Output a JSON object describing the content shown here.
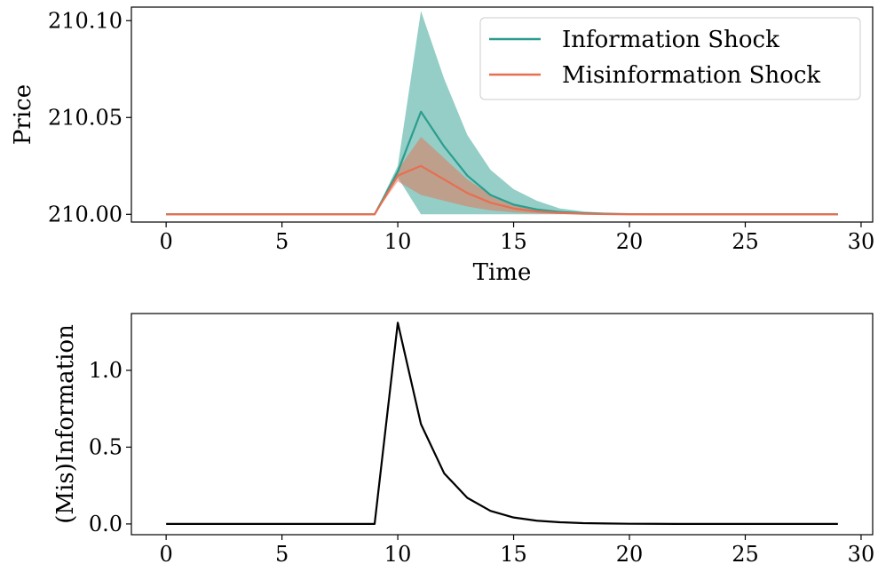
{
  "chart_data": [
    {
      "type": "line",
      "xlabel": "Time",
      "ylabel": "Price",
      "xlim": [
        -1.5,
        30.5
      ],
      "ylim": [
        209.996,
        210.107
      ],
      "xticks": [
        0,
        5,
        10,
        15,
        20,
        25,
        30
      ],
      "yticks": [
        210.0,
        210.05,
        210.1
      ],
      "ytick_labels": [
        "210.00",
        "210.05",
        "210.10"
      ],
      "legend_position": "upper-right",
      "x": [
        0,
        1,
        2,
        3,
        4,
        5,
        6,
        7,
        8,
        9,
        10,
        11,
        12,
        13,
        14,
        15,
        16,
        17,
        18,
        19,
        20,
        21,
        22,
        23,
        24,
        25,
        26,
        27,
        28,
        29
      ],
      "series": [
        {
          "name": "Information Shock",
          "color": "#2a9d8f",
          "band_color": "#2a9d8f",
          "values": [
            210,
            210,
            210,
            210,
            210,
            210,
            210,
            210,
            210,
            210,
            210.022,
            210.053,
            210.035,
            210.02,
            210.01,
            210.005,
            210.0025,
            210.0012,
            210.0006,
            210.0003,
            210.0001,
            210,
            210,
            210,
            210,
            210,
            210,
            210,
            210,
            210
          ],
          "band_upper": [
            210,
            210,
            210,
            210,
            210,
            210,
            210,
            210,
            210,
            210,
            210.025,
            210.105,
            210.07,
            210.041,
            210.023,
            210.013,
            210.007,
            210.003,
            210.0015,
            210.0007,
            210.0003,
            210.0001,
            210,
            210,
            210,
            210,
            210,
            210,
            210,
            210
          ],
          "band_lower": [
            210,
            210,
            210,
            210,
            210,
            210,
            210,
            210,
            210,
            210,
            210.019,
            210,
            210,
            210,
            210,
            210,
            210,
            210,
            210,
            210,
            210,
            210,
            210,
            210,
            210,
            210,
            210,
            210,
            210,
            210
          ]
        },
        {
          "name": "Misinformation Shock",
          "color": "#e76f51",
          "band_color": "#e76f51",
          "values": [
            210,
            210,
            210,
            210,
            210,
            210,
            210,
            210,
            210,
            210,
            210.02,
            210.025,
            210.018,
            210.011,
            210.006,
            210.003,
            210.0015,
            210.0007,
            210.0003,
            210.0001,
            210,
            210,
            210,
            210,
            210,
            210,
            210,
            210,
            210,
            210
          ],
          "band_upper": [
            210,
            210,
            210,
            210,
            210,
            210,
            210,
            210,
            210,
            210,
            210.023,
            210.04,
            210.029,
            210.018,
            210.01,
            210.005,
            210.0025,
            210.0012,
            210.0006,
            210.0002,
            210,
            210,
            210,
            210,
            210,
            210,
            210,
            210,
            210,
            210
          ],
          "band_lower": [
            210,
            210,
            210,
            210,
            210,
            210,
            210,
            210,
            210,
            210,
            210.017,
            210.01,
            210.007,
            210.004,
            210.002,
            210.001,
            210.0005,
            210.0002,
            210.0001,
            210,
            210,
            210,
            210,
            210,
            210,
            210,
            210,
            210,
            210,
            210
          ]
        }
      ]
    },
    {
      "type": "line",
      "xlabel": "",
      "ylabel": "(Mis)Information",
      "xlim": [
        -1.5,
        30.5
      ],
      "ylim": [
        -0.07,
        1.37
      ],
      "xticks": [
        0,
        5,
        10,
        15,
        20,
        25,
        30
      ],
      "yticks": [
        0.0,
        0.5,
        1.0
      ],
      "ytick_labels": [
        "0.0",
        "0.5",
        "1.0"
      ],
      "x": [
        0,
        1,
        2,
        3,
        4,
        5,
        6,
        7,
        8,
        9,
        10,
        11,
        12,
        13,
        14,
        15,
        16,
        17,
        18,
        19,
        20,
        21,
        22,
        23,
        24,
        25,
        26,
        27,
        28,
        29
      ],
      "series": [
        {
          "color": "#000000",
          "values": [
            0,
            0,
            0,
            0,
            0,
            0,
            0,
            0,
            0,
            0,
            1.31,
            0.65,
            0.33,
            0.17,
            0.085,
            0.042,
            0.021,
            0.011,
            0.005,
            0.003,
            0.0013,
            0.0007,
            0.0003,
            0.0002,
            0.0001,
            0,
            0,
            0,
            0,
            0
          ]
        }
      ]
    }
  ]
}
